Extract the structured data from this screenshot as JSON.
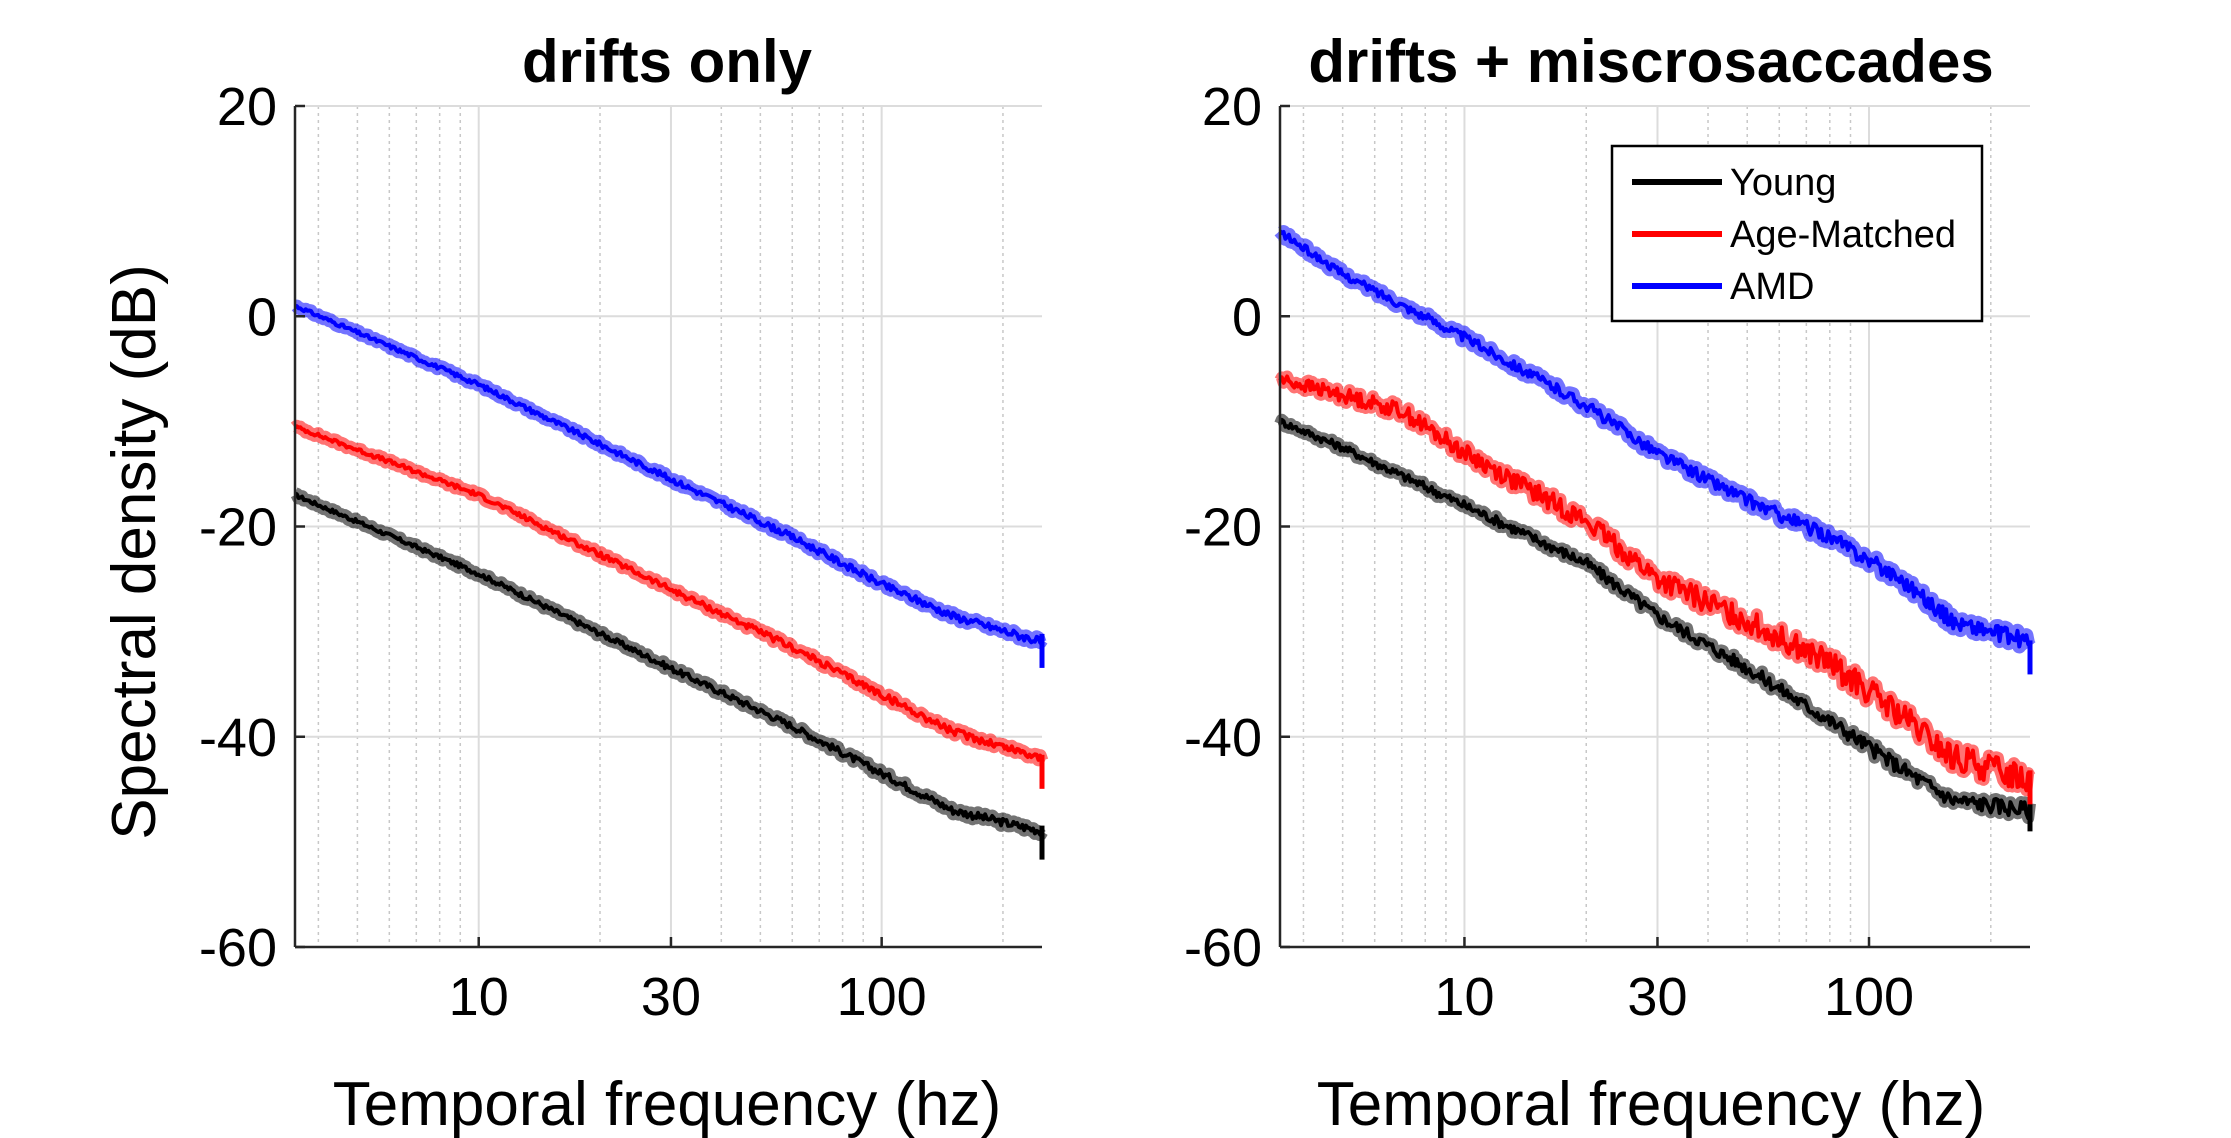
{
  "chart_data": [
    {
      "type": "line",
      "title": "drifts only",
      "xlabel": "Temporal frequency (hz)",
      "ylabel": "Spectral density (dB)",
      "xscale": "log",
      "xlim": [
        3.5,
        250
      ],
      "ylim": [
        -60,
        20
      ],
      "xticks": [
        10,
        30,
        100
      ],
      "xtick_labels": [
        "10",
        "30",
        "100"
      ],
      "yticks": [
        -60,
        -40,
        -20,
        0,
        20
      ],
      "ytick_labels": [
        "-60",
        "-40",
        "-20",
        "0",
        "20"
      ],
      "grid": true,
      "legend": null,
      "series": [
        {
          "name": "Young",
          "color": "#000000",
          "x": [
            3.5,
            10,
            30,
            60,
            100,
            150,
            250
          ],
          "y": [
            -17,
            -24.5,
            -33.5,
            -39,
            -43.5,
            -47,
            -49
          ]
        },
        {
          "name": "Age-Matched",
          "color": "#ff0000",
          "x": [
            3.5,
            10,
            30,
            60,
            100,
            150,
            250
          ],
          "y": [
            -10.5,
            -17,
            -26,
            -31.5,
            -36,
            -39.5,
            -42
          ]
        },
        {
          "name": "AMD",
          "color": "#0000ff",
          "x": [
            3.5,
            10,
            30,
            60,
            100,
            150,
            250
          ],
          "y": [
            1,
            -6.5,
            -15.5,
            -21,
            -25.5,
            -28.5,
            -31
          ]
        }
      ]
    },
    {
      "type": "line",
      "title": "drifts + miscrosaccades",
      "xlabel": "Temporal frequency (hz)",
      "ylabel": "",
      "xscale": "log",
      "xlim": [
        3.5,
        250
      ],
      "ylim": [
        -60,
        20
      ],
      "xticks": [
        10,
        30,
        100
      ],
      "xtick_labels": [
        "10",
        "30",
        "100"
      ],
      "yticks": [
        -60,
        -40,
        -20,
        0,
        20
      ],
      "ytick_labels": [
        "-60",
        "-40",
        "-20",
        "0",
        "20"
      ],
      "grid": true,
      "legend": "top-right",
      "series": [
        {
          "name": "Young",
          "color": "#000000",
          "x": [
            3.5,
            5,
            10,
            20,
            30,
            50,
            80,
            120,
            160,
            250
          ],
          "y": [
            -10,
            -12.5,
            -18,
            -23.5,
            -28.5,
            -33.5,
            -38.5,
            -43,
            -46,
            -47
          ]
        },
        {
          "name": "Age-Matched",
          "color": "#ff0000",
          "x": [
            3.5,
            5,
            7,
            10,
            20,
            30,
            50,
            80,
            120,
            160,
            250
          ],
          "y": [
            -6,
            -7.5,
            -9,
            -13,
            -19.5,
            -25,
            -29,
            -33,
            -38,
            -42,
            -44
          ]
        },
        {
          "name": "AMD",
          "color": "#0000ff",
          "x": [
            3.5,
            5,
            10,
            20,
            30,
            50,
            80,
            120,
            160,
            250
          ],
          "y": [
            8,
            4,
            -2,
            -8.5,
            -13,
            -17.5,
            -21,
            -25,
            -29,
            -31
          ]
        }
      ]
    }
  ]
}
